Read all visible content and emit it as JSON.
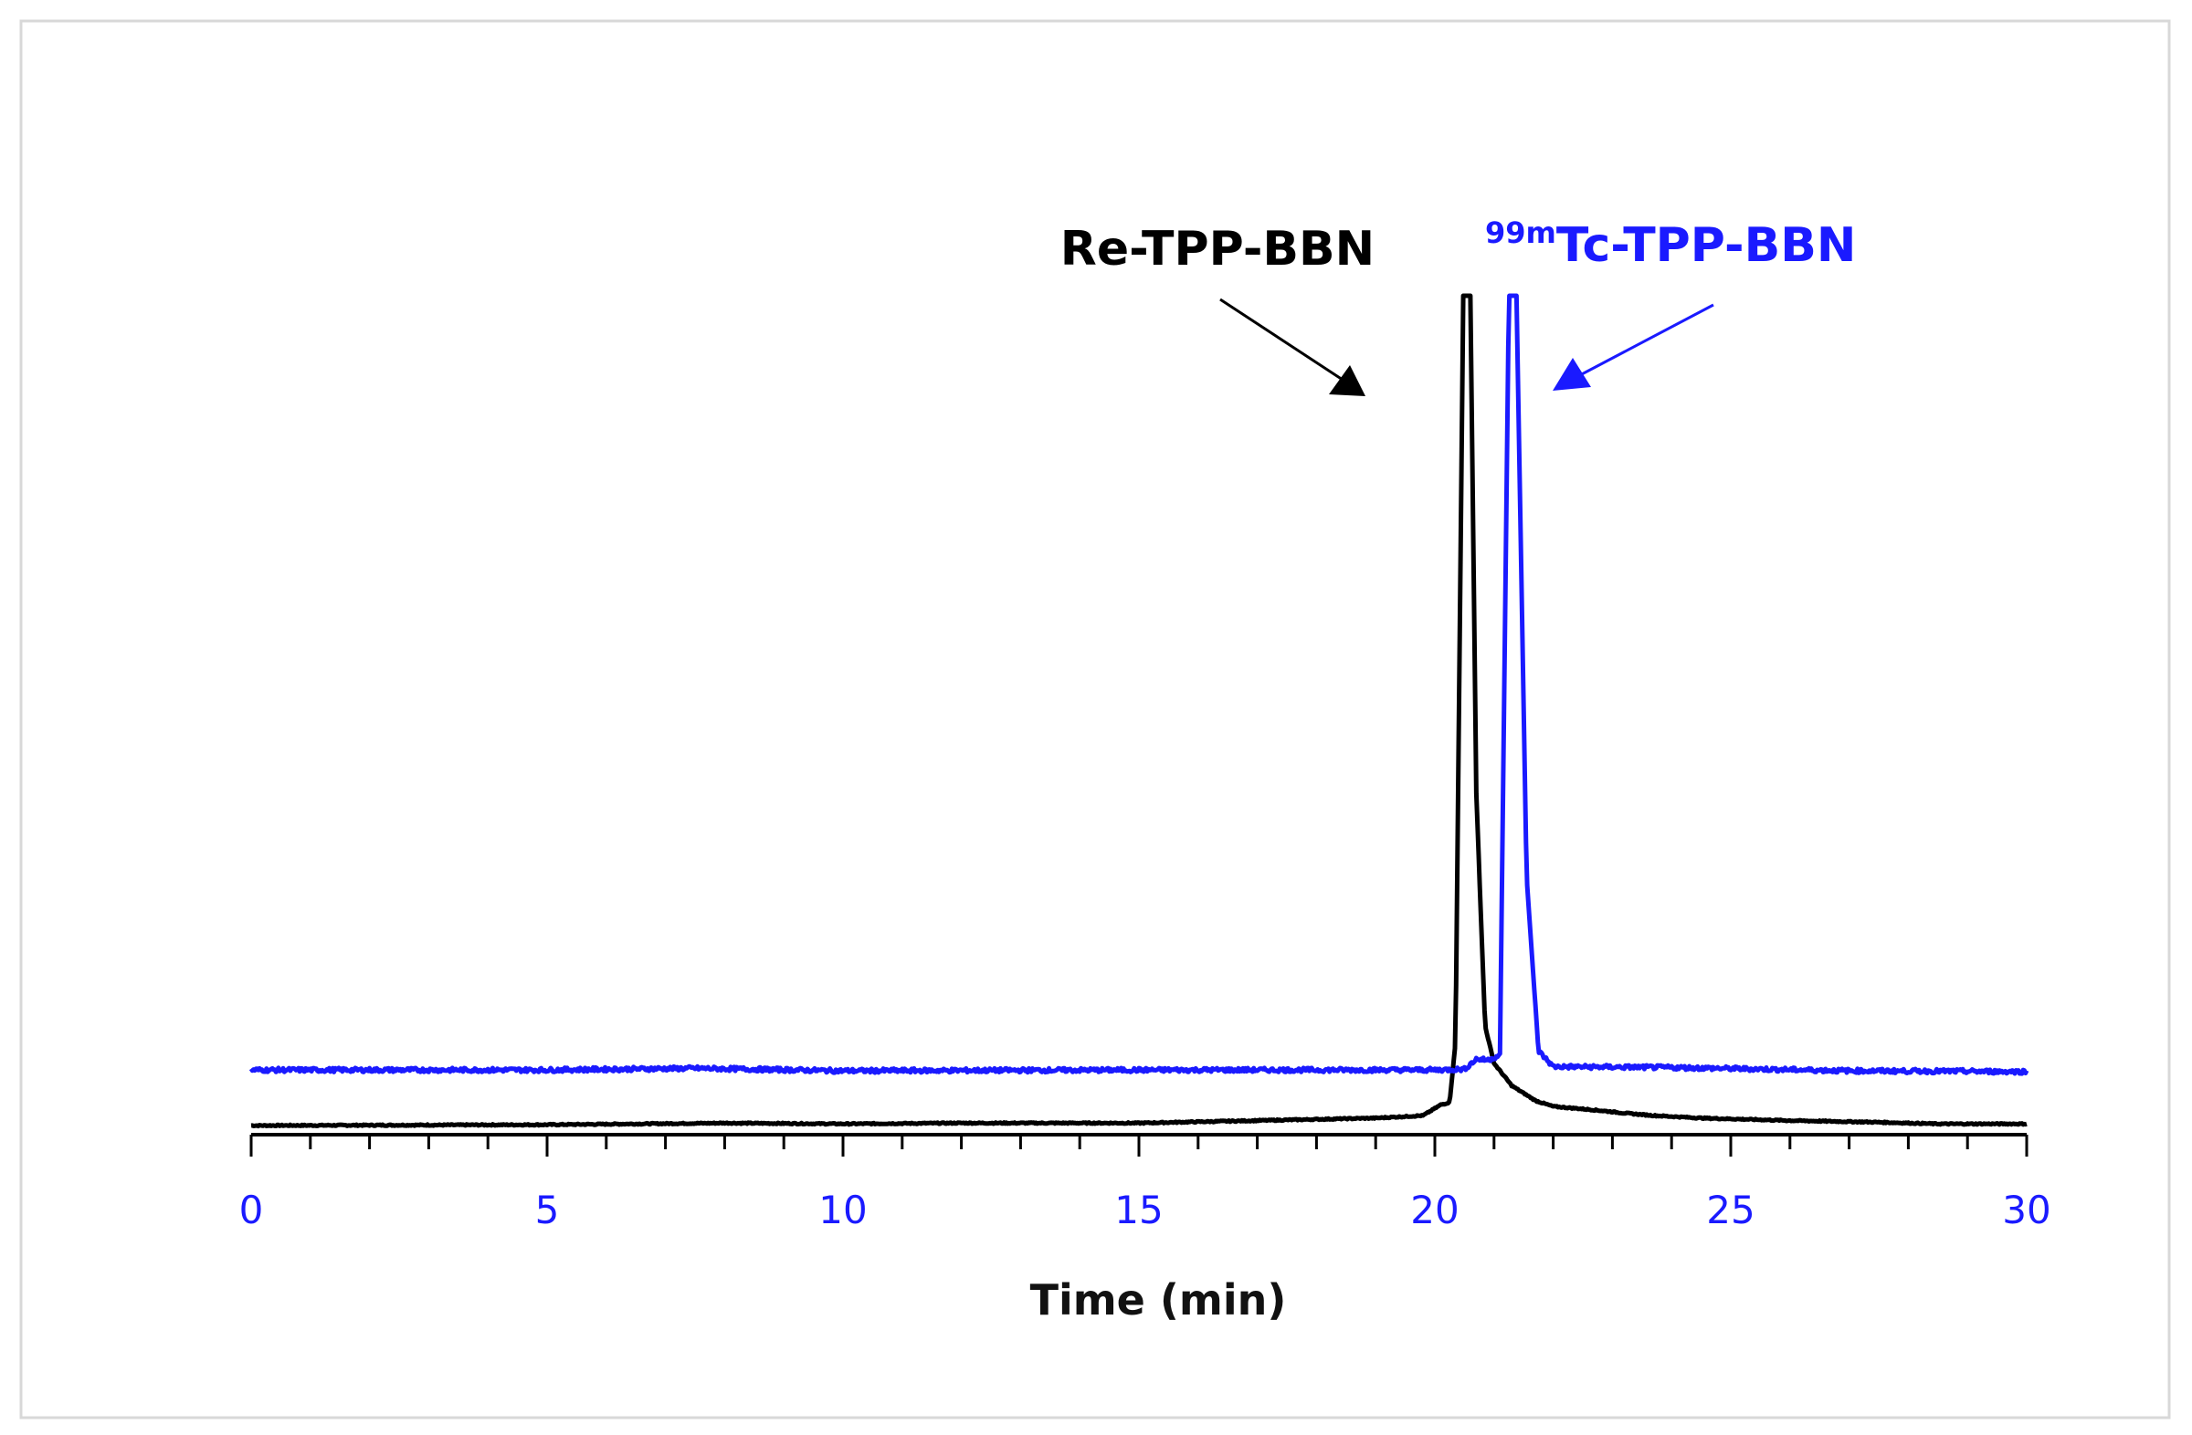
{
  "chart_data": {
    "type": "line",
    "title": "",
    "xlabel": "Time (min)",
    "ylabel": "",
    "xlim": [
      0,
      30
    ],
    "ylim": [
      0,
      100
    ],
    "grid": false,
    "x_ticks": [
      "0",
      "5",
      "10",
      "15",
      "20",
      "25",
      "30"
    ],
    "minor_tick_step": 1,
    "series": [
      {
        "name": "Re-TPP-BBN",
        "color": "#000000",
        "points": [
          [
            0,
            0
          ],
          [
            5,
            0.1
          ],
          [
            8,
            0.3
          ],
          [
            10,
            0.2
          ],
          [
            12,
            0.3
          ],
          [
            15,
            0.3
          ],
          [
            17,
            0.6
          ],
          [
            19,
            0.9
          ],
          [
            19.8,
            1.2
          ],
          [
            20.1,
            2.5
          ],
          [
            20.25,
            2.8
          ],
          [
            20.35,
            10
          ],
          [
            20.48,
            100
          ],
          [
            20.6,
            100
          ],
          [
            20.7,
            40
          ],
          [
            20.85,
            12
          ],
          [
            21.0,
            7.5
          ],
          [
            21.3,
            4.8
          ],
          [
            21.7,
            3.0
          ],
          [
            22.0,
            2.3
          ],
          [
            22.5,
            2.0
          ],
          [
            22.8,
            1.8
          ],
          [
            23.2,
            1.5
          ],
          [
            23.7,
            1.2
          ],
          [
            24.5,
            0.9
          ],
          [
            26,
            0.6
          ],
          [
            27.5,
            0.4
          ],
          [
            28.5,
            0.2
          ],
          [
            30,
            0.2
          ]
        ]
      },
      {
        "name": "99mTc-TPP-BBN",
        "color": "#1a1aff",
        "points": [
          [
            0,
            6.7
          ],
          [
            5,
            6.7
          ],
          [
            7.5,
            6.9
          ],
          [
            10,
            6.6
          ],
          [
            15,
            6.7
          ],
          [
            20,
            6.7
          ],
          [
            20.5,
            6.8
          ],
          [
            20.7,
            8.0
          ],
          [
            20.9,
            7.9
          ],
          [
            21.1,
            8.5
          ],
          [
            21.25,
            100
          ],
          [
            21.38,
            100
          ],
          [
            21.55,
            30
          ],
          [
            21.75,
            9
          ],
          [
            22,
            7.1
          ],
          [
            24,
            7.0
          ],
          [
            27,
            6.6
          ],
          [
            30,
            6.5
          ]
        ]
      }
    ],
    "annotations": [
      {
        "text": "Re-TPP-BBN",
        "color": "#000000",
        "points_to_x": 20.5
      },
      {
        "sup": "99m",
        "text": "Tc-TPP-BBN",
        "color": "#1a1aff",
        "points_to_x": 21.3
      }
    ]
  }
}
